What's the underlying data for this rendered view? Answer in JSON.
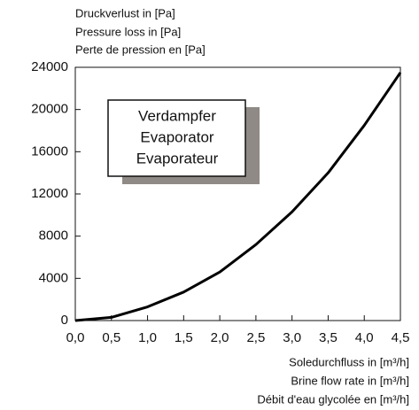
{
  "chart_data": {
    "type": "line",
    "ylabel": [
      "Druckverlust in [Pa]",
      "Pressure loss in [Pa]",
      "Perte de pression en [Pa]"
    ],
    "xlabel": [
      "Soledurchfluss in [m³/h]",
      "Brine flow rate in [m³/h]",
      "Débit d'eau glycolée en [m³/h]"
    ],
    "annotation": [
      "Verdampfer",
      "Evaporator",
      "Evaporateur"
    ],
    "x": [
      0,
      0.5,
      1.0,
      1.5,
      2.0,
      2.5,
      3.0,
      3.5,
      4.0,
      4.5
    ],
    "series": [
      {
        "name": null,
        "color": "#000000",
        "values": [
          0,
          300,
          1300,
          2700,
          4600,
          7200,
          10300,
          14000,
          18500,
          23500
        ]
      }
    ],
    "xlim": [
      0,
      4.5
    ],
    "xticks": [
      {
        "value": 0,
        "label": "0,0"
      },
      {
        "value": 0.5,
        "label": "0,5"
      },
      {
        "value": 1.0,
        "label": "1,0"
      },
      {
        "value": 1.5,
        "label": "1,5"
      },
      {
        "value": 2.0,
        "label": "2,0"
      },
      {
        "value": 2.5,
        "label": "2,5"
      },
      {
        "value": 3.0,
        "label": "3,0"
      },
      {
        "value": 3.5,
        "label": "3,5"
      },
      {
        "value": 4.0,
        "label": "4,0"
      },
      {
        "value": 4.5,
        "label": "4,5"
      }
    ],
    "ylim": [
      0,
      24000
    ],
    "yticks": [
      0,
      4000,
      8000,
      12000,
      16000,
      20000,
      24000
    ],
    "grid": false
  }
}
